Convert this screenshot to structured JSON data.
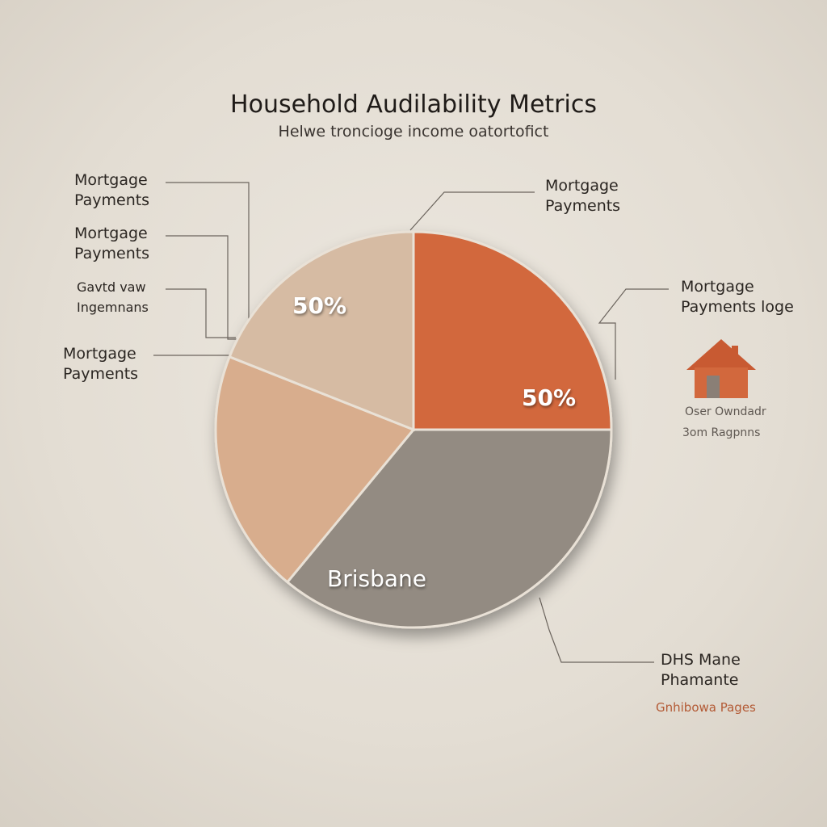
{
  "chart_data": {
    "type": "pie",
    "title": "Household Audilability Metrics",
    "subtitle": "Helwe troncioge income oatortofict",
    "categories": [
      "Mortgage Payments",
      "DHS Mane Phamante",
      "Mortgage Payments",
      "Mortgage Payments"
    ],
    "values": [
      25,
      36,
      20,
      19
    ],
    "colors": [
      "#d2683d",
      "#938b82",
      "#d8ad8d",
      "#d6bba3"
    ],
    "annotations": [
      "50%",
      "50%",
      "Brisbane",
      "Mortgage Payments",
      "Gavtd vaw Ingemnans",
      "Mortgage Payments loge",
      "Oser Owndadr",
      "3om Ragpnns",
      "Gnhibowa Pages"
    ]
  }
}
